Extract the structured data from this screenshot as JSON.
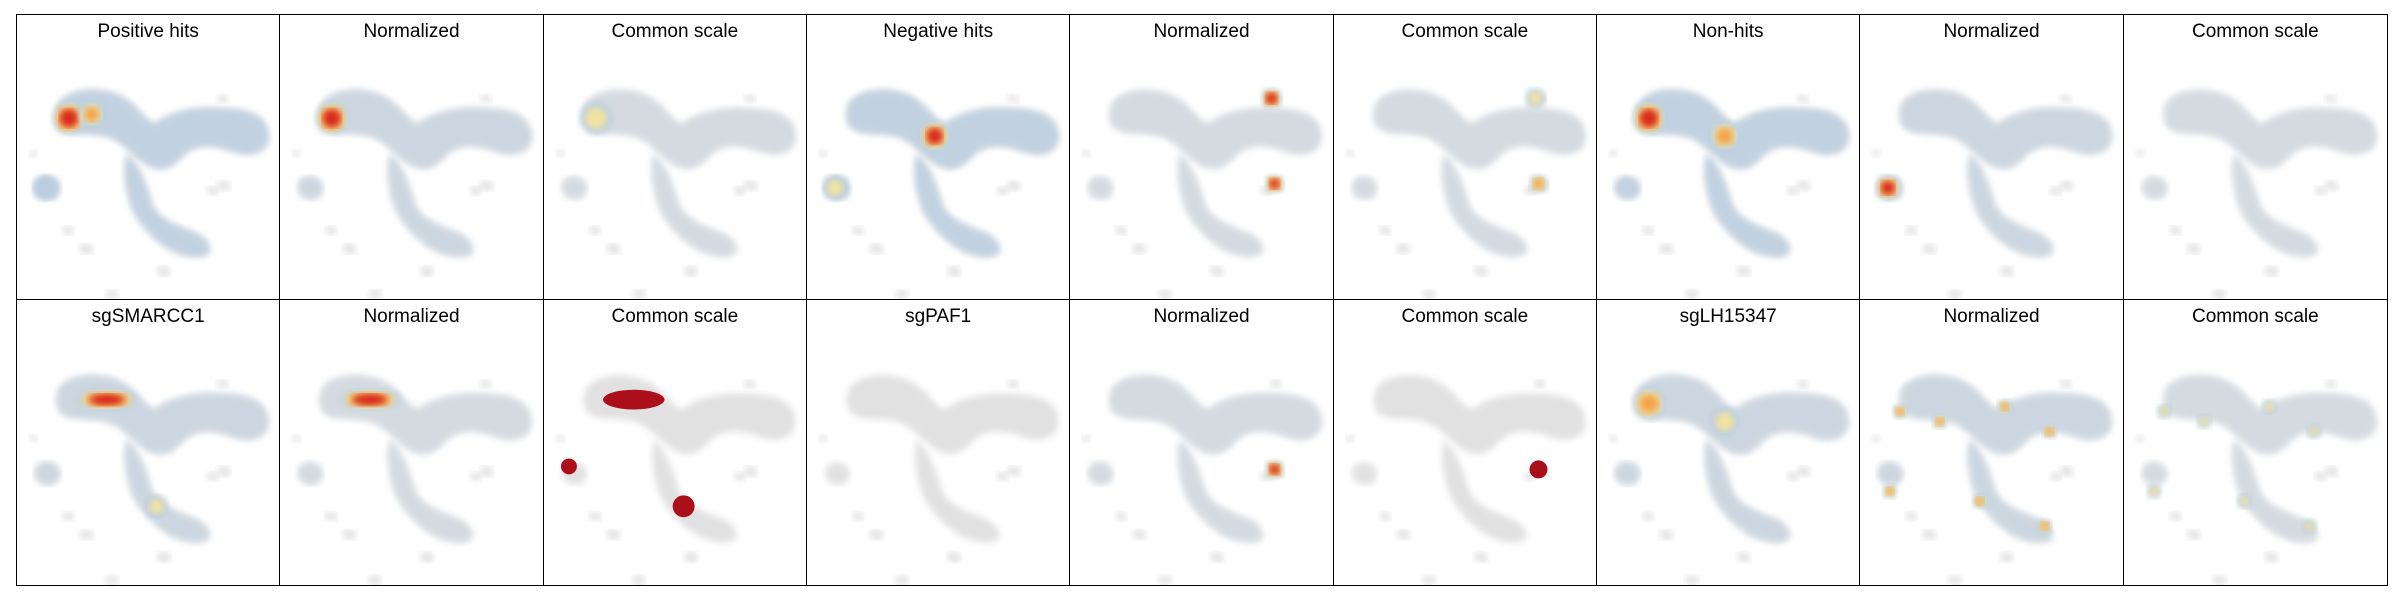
{
  "figure": {
    "rows": [
      {
        "panels": [
          {
            "title": "Positive hits",
            "intensity": "high",
            "hotspots": [
              {
                "pos": "upper-left blob",
                "level": "max"
              },
              {
                "pos": "upper-left center",
                "level": "high"
              },
              {
                "pos": "lower-left",
                "level": "low"
              }
            ]
          },
          {
            "title": "Normalized",
            "intensity": "medium",
            "hotspots": [
              {
                "pos": "upper-left blob",
                "level": "max"
              }
            ]
          },
          {
            "title": "Common scale",
            "intensity": "low",
            "hotspots": [
              {
                "pos": "upper-left blob",
                "level": "medium"
              }
            ]
          },
          {
            "title": "Negative hits",
            "intensity": "high",
            "hotspots": [
              {
                "pos": "center",
                "level": "max"
              },
              {
                "pos": "lower-left",
                "level": "medium"
              }
            ]
          },
          {
            "title": "Normalized",
            "intensity": "low",
            "hotspots": [
              {
                "pos": "top-right",
                "level": "max"
              },
              {
                "pos": "right-middle",
                "level": "max"
              }
            ]
          },
          {
            "title": "Common scale",
            "intensity": "low",
            "hotspots": [
              {
                "pos": "top-right",
                "level": "medium"
              },
              {
                "pos": "right-middle",
                "level": "high"
              }
            ]
          },
          {
            "title": "Non-hits",
            "intensity": "high",
            "hotspots": [
              {
                "pos": "upper-left blob",
                "level": "max"
              },
              {
                "pos": "center",
                "level": "high"
              }
            ]
          },
          {
            "title": "Normalized",
            "intensity": "medium",
            "hotspots": [
              {
                "pos": "lower-left",
                "level": "max"
              }
            ]
          },
          {
            "title": "Common scale",
            "intensity": "low",
            "hotspots": []
          }
        ]
      },
      {
        "panels": [
          {
            "title": "sgSMARCC1",
            "intensity": "medium",
            "hotspots": [
              {
                "pos": "upper bar",
                "level": "max"
              },
              {
                "pos": "center-lower",
                "level": "medium"
              }
            ]
          },
          {
            "title": "Normalized",
            "intensity": "low",
            "hotspots": [
              {
                "pos": "upper bar",
                "level": "max"
              }
            ]
          },
          {
            "title": "Common scale",
            "intensity": "max",
            "hotspots": [
              {
                "pos": "upper bar",
                "level": "solid"
              },
              {
                "pos": "left dot",
                "level": "solid"
              },
              {
                "pos": "center-lower",
                "level": "solid"
              }
            ]
          },
          {
            "title": "sgPAF1",
            "intensity": "none",
            "hotspots": []
          },
          {
            "title": "Normalized",
            "intensity": "low",
            "hotspots": [
              {
                "pos": "right-middle",
                "level": "max"
              }
            ]
          },
          {
            "title": "Common scale",
            "intensity": "max",
            "hotspots": [
              {
                "pos": "right-middle",
                "level": "solid"
              }
            ]
          },
          {
            "title": "sgLH15347",
            "intensity": "medium",
            "hotspots": [
              {
                "pos": "upper-left blob",
                "level": "high"
              },
              {
                "pos": "center",
                "level": "medium"
              }
            ]
          },
          {
            "title": "Normalized",
            "intensity": "medium",
            "hotspots": [
              {
                "pos": "scattered",
                "level": "high"
              }
            ]
          },
          {
            "title": "Common scale",
            "intensity": "low",
            "hotspots": [
              {
                "pos": "scattered",
                "level": "medium"
              }
            ]
          }
        ]
      }
    ]
  },
  "colors": {
    "background_shape": "#e1e1e1",
    "low": "#b9cde0",
    "medium": "#f2e3a0",
    "high": "#f4a24a",
    "max": "#d7261e",
    "solid": "#aa0f1a"
  }
}
